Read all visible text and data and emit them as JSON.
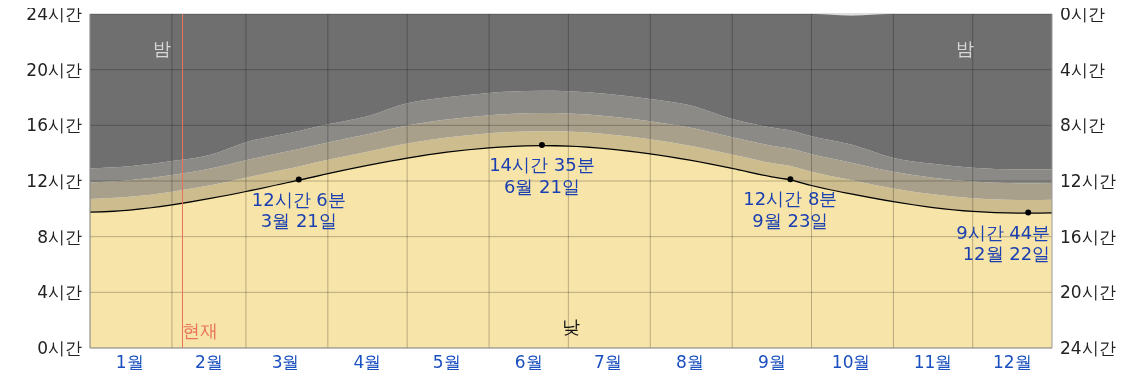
{
  "chart_data": {
    "type": "area",
    "stacked": true,
    "x": [
      "--01-01",
      "--01-16",
      "--02-01",
      "--02-16",
      "--03-01",
      "--03-16",
      "--03-21",
      "--04-01",
      "--04-16",
      "--05-01",
      "--05-16",
      "--06-01",
      "--06-21",
      "--07-01",
      "--07-16",
      "--08-01",
      "--08-16",
      "--09-01",
      "--09-16",
      "--09-23",
      "--10-01",
      "--10-16",
      "--11-01",
      "--11-16",
      "--12-01",
      "--12-22",
      "--12-31"
    ],
    "series": [
      {
        "color": "#f7e4a9",
        "values": [
          9.8,
          9.96,
          10.33,
          10.81,
          11.29,
          11.9,
          12.1,
          12.57,
          13.16,
          13.69,
          14.12,
          14.43,
          14.58,
          14.55,
          14.36,
          14.0,
          13.54,
          12.95,
          12.34,
          12.13,
          11.72,
          11.12,
          10.56,
          10.14,
          9.86,
          9.73,
          9.75
        ]
      },
      {
        "color": "#cdbd8e",
        "values": [
          0.9,
          0.9,
          0.9,
          0.9,
          0.95,
          0.95,
          0.95,
          0.95,
          0.95,
          1.0,
          1.0,
          1.0,
          1.0,
          1.0,
          1.0,
          1.0,
          1.0,
          0.95,
          0.95,
          0.95,
          0.95,
          0.95,
          0.9,
          0.9,
          0.9,
          0.9,
          0.9
        ]
      },
      {
        "color": "#a8a08b",
        "values": [
          1.2,
          1.2,
          1.2,
          1.2,
          1.25,
          1.25,
          1.25,
          1.25,
          1.25,
          1.3,
          1.3,
          1.3,
          1.3,
          1.3,
          1.3,
          1.3,
          1.3,
          1.25,
          1.25,
          1.25,
          1.25,
          1.25,
          1.2,
          1.2,
          1.2,
          1.2,
          1.2
        ]
      },
      {
        "color": "#8c8a86",
        "values": [
          1.0,
          1.0,
          1.0,
          1.0,
          1.3,
          1.3,
          1.3,
          1.3,
          1.3,
          1.6,
          1.6,
          1.6,
          1.6,
          1.6,
          1.6,
          1.6,
          1.6,
          1.3,
          1.3,
          1.3,
          1.3,
          1.3,
          1.0,
          1.0,
          1.0,
          1.0,
          1.0
        ]
      },
      {
        "color": "#6f6f6f",
        "values": [
          11.1,
          10.94,
          10.57,
          10.09,
          9.21,
          8.6,
          8.4,
          7.93,
          7.34,
          6.41,
          5.98,
          5.67,
          5.52,
          5.55,
          5.74,
          6.1,
          6.56,
          7.55,
          8.16,
          8.37,
          8.78,
          9.28,
          10.34,
          10.76,
          11.04,
          11.17,
          11.15
        ]
      }
    ],
    "xlim": [
      "--01-01",
      "--12-31"
    ],
    "xticks": [
      {
        "value": "--01-01",
        "label": null
      },
      {
        "value": "--01-16",
        "label": "1월"
      },
      {
        "value": "--02-01",
        "label": null
      },
      {
        "value": "--02-15",
        "label": "2월"
      },
      {
        "value": "--03-01",
        "label": null
      },
      {
        "value": "--03-16",
        "label": "3월"
      },
      {
        "value": "--04-01",
        "label": null
      },
      {
        "value": "--04-16",
        "label": "4월"
      },
      {
        "value": "--05-01",
        "label": null
      },
      {
        "value": "--05-16",
        "label": "5월"
      },
      {
        "value": "--06-01",
        "label": null
      },
      {
        "value": "--06-16",
        "label": "6월"
      },
      {
        "value": "--07-01",
        "label": null
      },
      {
        "value": "--07-16",
        "label": "7월"
      },
      {
        "value": "--08-01",
        "label": null
      },
      {
        "value": "--08-16",
        "label": "8월"
      },
      {
        "value": "--09-01",
        "label": null
      },
      {
        "value": "--09-16",
        "label": "9월"
      },
      {
        "value": "--10-01",
        "label": null
      },
      {
        "value": "--10-16",
        "label": "10월"
      },
      {
        "value": "--11-01",
        "label": null
      },
      {
        "value": "--11-16",
        "label": "11월"
      },
      {
        "value": "--12-01",
        "label": null
      },
      {
        "value": "--12-16",
        "label": "12월"
      }
    ],
    "ylim": [
      0,
      24
    ],
    "yticks": [
      {
        "value": 0,
        "label": "0시간"
      },
      {
        "value": 4,
        "label": "4시간"
      },
      {
        "value": 8,
        "label": "8시간"
      },
      {
        "value": 12,
        "label": "12시간"
      },
      {
        "value": 16,
        "label": "16시간"
      },
      {
        "value": 20,
        "label": "20시간"
      },
      {
        "value": 24,
        "label": "24시간"
      }
    ],
    "y2lim": [
      24,
      0
    ],
    "y2ticks": [
      {
        "value": 0,
        "label": "0시간"
      },
      {
        "value": 4,
        "label": "4시간"
      },
      {
        "value": 8,
        "label": "8시간"
      },
      {
        "value": 12,
        "label": "12시간"
      },
      {
        "value": 16,
        "label": "16시간"
      },
      {
        "value": 20,
        "label": "20시간"
      },
      {
        "value": 24,
        "label": "24시간"
      }
    ],
    "grid": true,
    "ref_lines": [
      {
        "axis": "x",
        "value": "--02-05",
        "label": "현재",
        "color": "#e8735a"
      }
    ],
    "annotations": [
      {
        "text": "12시간 6분\n3월 21일",
        "x": "--03-21",
        "y": 12.1
      },
      {
        "text": "14시간 35분\n6월 21일",
        "x": "--06-21",
        "y": 14.58
      },
      {
        "text": "12시간 8분\n9월 23일",
        "x": "--09-23",
        "y": 12.13
      },
      {
        "text": "9시간 44분\n12월 22일",
        "x": "--12-22",
        "y": 9.73
      },
      "밤",
      "밤",
      "낮"
    ]
  }
}
